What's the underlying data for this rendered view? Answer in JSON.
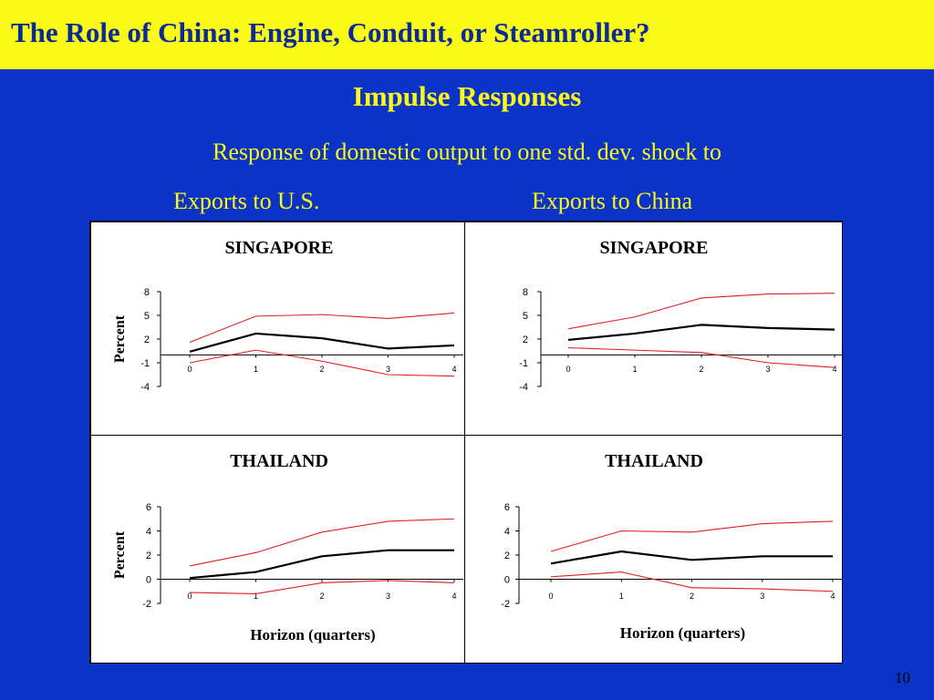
{
  "slide": {
    "title": "The Role of China:  Engine, Conduit, or Steamroller?",
    "subtitle": "Impulse Responses",
    "description": "Response of domestic output to one std. dev. shock to",
    "left_heading": "Exports to U.S.",
    "right_heading": "Exports to China",
    "page_number": "10"
  },
  "colors": {
    "background": "#0b33c8",
    "title_bar": "#fafa14",
    "title_text": "#0a2a9a",
    "accent_text": "#fafa14",
    "band": "#e02020",
    "response": "#000000"
  },
  "chart_data": [
    {
      "type": "line",
      "title": "SINGAPORE",
      "ylabel": "Percent",
      "xlabel": "",
      "x": [
        0,
        1,
        2,
        3,
        4
      ],
      "yticks": [
        8,
        5,
        2,
        -1,
        -4
      ],
      "ylim": [
        -4,
        8
      ],
      "series": [
        {
          "role": "upper",
          "values": [
            1.6,
            4.9,
            5.1,
            4.6,
            5.3
          ]
        },
        {
          "role": "response",
          "values": [
            0.4,
            2.7,
            2.1,
            0.8,
            1.2
          ]
        },
        {
          "role": "lower",
          "values": [
            -1.0,
            0.6,
            -0.8,
            -2.5,
            -2.7
          ]
        }
      ]
    },
    {
      "type": "line",
      "title": "SINGAPORE",
      "ylabel": "",
      "xlabel": "",
      "x": [
        0,
        1,
        2,
        3,
        4
      ],
      "yticks": [
        8,
        5,
        2,
        -1,
        -4
      ],
      "ylim": [
        -4,
        8
      ],
      "series": [
        {
          "role": "upper",
          "values": [
            3.3,
            4.8,
            7.2,
            7.7,
            7.8
          ]
        },
        {
          "role": "response",
          "values": [
            1.9,
            2.7,
            3.8,
            3.4,
            3.2
          ]
        },
        {
          "role": "lower",
          "values": [
            0.9,
            0.6,
            0.3,
            -1.0,
            -1.6
          ]
        }
      ]
    },
    {
      "type": "line",
      "title": "THAILAND",
      "ylabel": "Percent",
      "xlabel": "Horizon (quarters)",
      "x": [
        0,
        1,
        2,
        3,
        4
      ],
      "yticks": [
        6,
        4,
        2,
        0,
        -2
      ],
      "ylim": [
        -2,
        6
      ],
      "series": [
        {
          "role": "upper",
          "values": [
            1.1,
            2.2,
            3.9,
            4.8,
            5.0
          ]
        },
        {
          "role": "response",
          "values": [
            0.1,
            0.6,
            1.9,
            2.4,
            2.4
          ]
        },
        {
          "role": "lower",
          "values": [
            -1.1,
            -1.2,
            -0.3,
            -0.1,
            -0.3
          ]
        }
      ]
    },
    {
      "type": "line",
      "title": "THAILAND",
      "ylabel": "",
      "xlabel": "Horizon (quarters)",
      "x": [
        0,
        1,
        2,
        3,
        4
      ],
      "yticks": [
        6,
        4,
        2,
        0,
        -2
      ],
      "ylim": [
        -2,
        6
      ],
      "series": [
        {
          "role": "upper",
          "values": [
            2.3,
            4.0,
            3.9,
            4.6,
            4.8
          ]
        },
        {
          "role": "response",
          "values": [
            1.3,
            2.3,
            1.6,
            1.9,
            1.9
          ]
        },
        {
          "role": "lower",
          "values": [
            0.2,
            0.6,
            -0.7,
            -0.8,
            -1.0
          ]
        }
      ]
    }
  ]
}
